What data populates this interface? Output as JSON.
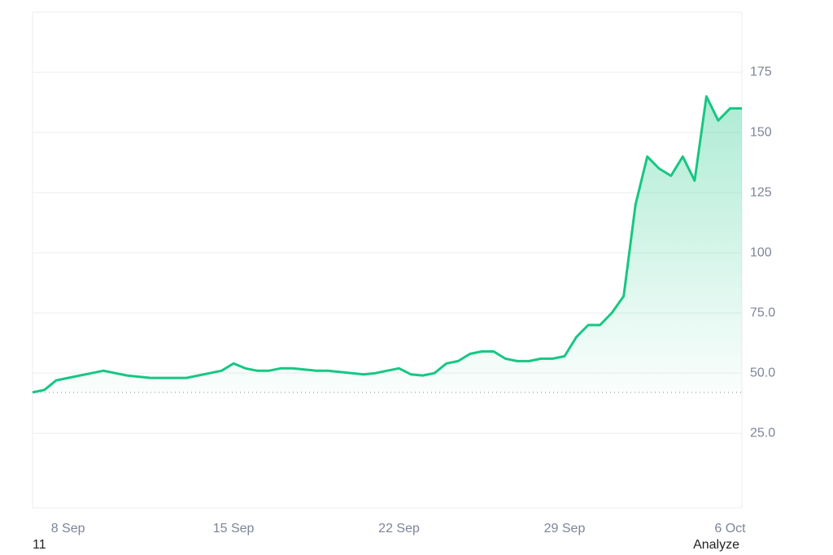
{
  "chart_data": {
    "type": "line",
    "categories": [
      null,
      null,
      null,
      "8 Sep",
      null,
      null,
      null,
      null,
      null,
      null,
      null,
      null,
      null,
      null,
      null,
      null,
      null,
      "15 Sep",
      null,
      null,
      null,
      null,
      null,
      null,
      null,
      null,
      null,
      null,
      null,
      null,
      null,
      "22 Sep",
      null,
      null,
      null,
      null,
      null,
      null,
      null,
      null,
      null,
      null,
      null,
      null,
      null,
      "29 Sep",
      null,
      null,
      null,
      null,
      null,
      null,
      null,
      null,
      null,
      null,
      null,
      null,
      null,
      "6 Oct",
      null
    ],
    "series": [
      {
        "color": "#16c784",
        "values": [
          42,
          43,
          47,
          48,
          49,
          50,
          51,
          50,
          49,
          48.5,
          48,
          48,
          48,
          48,
          49,
          50,
          51,
          54,
          52,
          51,
          51,
          52,
          52,
          51.5,
          51,
          51,
          50.5,
          50,
          49.5,
          50,
          51,
          52,
          49.5,
          49,
          50,
          54,
          55,
          58,
          59,
          59,
          56,
          55,
          55,
          56,
          56,
          57,
          65,
          70,
          70,
          75,
          82,
          120,
          140,
          135,
          132,
          140,
          130,
          165,
          155,
          160,
          160
        ]
      }
    ],
    "ylim": [
      -6,
      200
    ],
    "yticks": [
      {
        "value": 25,
        "label": "25.0"
      },
      {
        "value": 50,
        "label": "50.0"
      },
      {
        "value": 75,
        "label": "75.0"
      },
      100,
      125,
      150,
      175
    ],
    "grid": true,
    "reference_line": 42,
    "footer_left": "11",
    "footer_right": "Analyze"
  }
}
